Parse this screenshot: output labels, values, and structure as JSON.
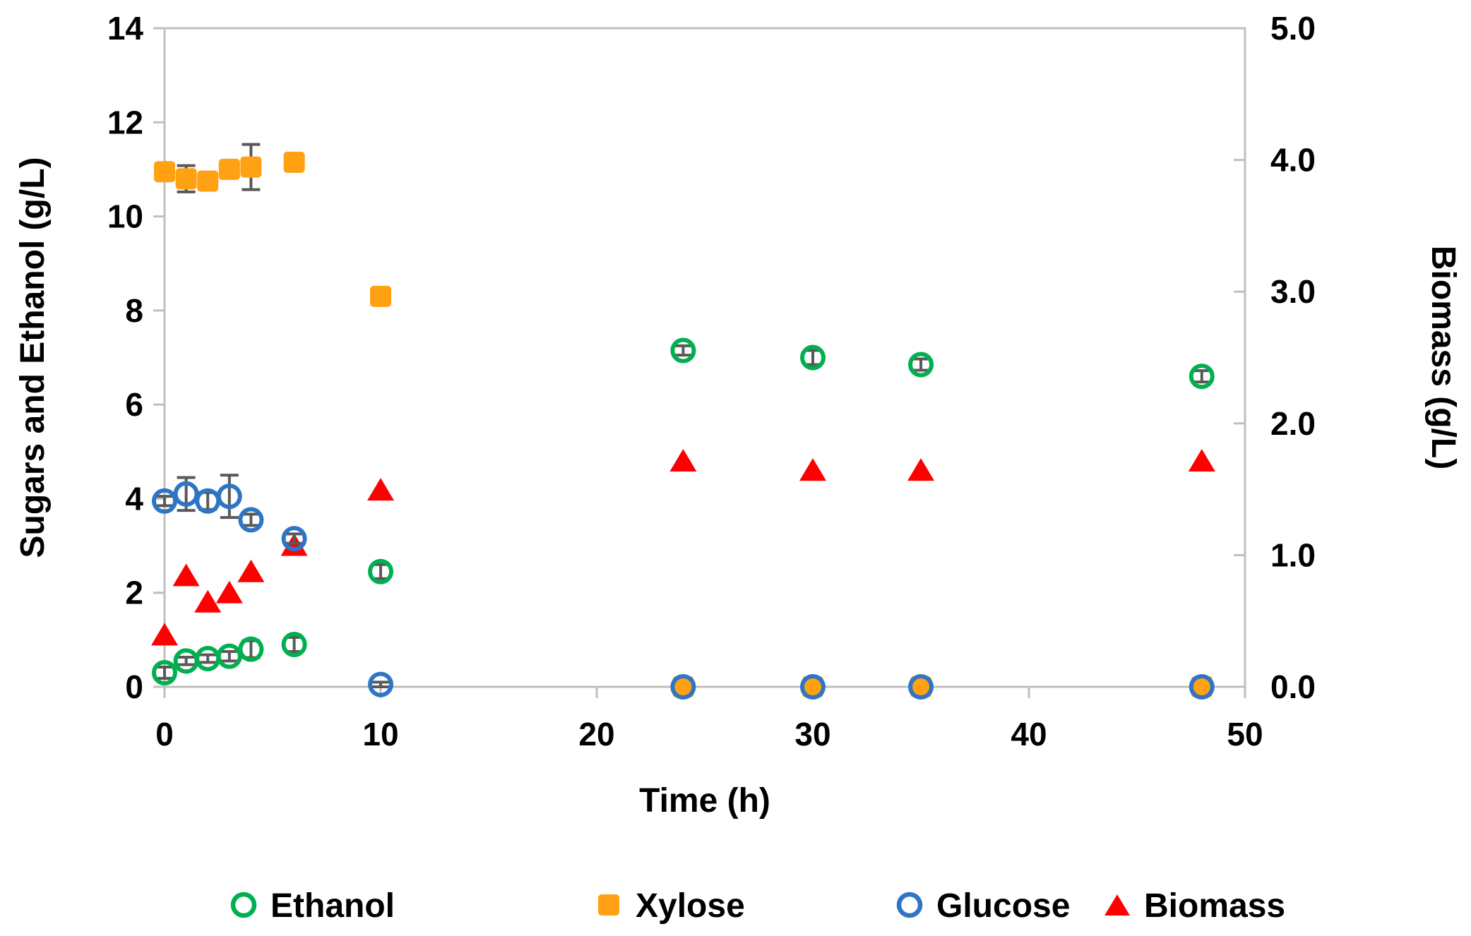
{
  "chart_data": {
    "type": "scatter",
    "title": "",
    "xlabel": "Time (h)",
    "ylabel_left": "Sugars and Ethanol (g/L)",
    "ylabel_right": "Biomass (g/L)",
    "xlim": [
      0,
      50
    ],
    "xticks": [
      "0",
      "10",
      "20",
      "30",
      "40",
      "50"
    ],
    "xtick_values": [
      0,
      10,
      20,
      30,
      40,
      50
    ],
    "ylim_left": [
      0,
      14
    ],
    "yticks_left": [
      "0",
      "2",
      "4",
      "6",
      "8",
      "10",
      "12",
      "14"
    ],
    "ytick_values_left": [
      0,
      2,
      4,
      6,
      8,
      10,
      12,
      14
    ],
    "ylim_right": [
      0.0,
      5.0
    ],
    "yticks_right": [
      "0.0",
      "1.0",
      "2.0",
      "3.0",
      "4.0",
      "5.0"
    ],
    "ytick_values_right": [
      0.0,
      1.0,
      2.0,
      3.0,
      4.0,
      5.0
    ],
    "grid": false,
    "legend_position": "bottom",
    "x": [
      0,
      1,
      2,
      3,
      4,
      6,
      10,
      24,
      30,
      35,
      48
    ],
    "series": [
      {
        "name": "Xylose",
        "marker": "square",
        "color": "#FFA113",
        "axis": "left",
        "values": [
          10.95,
          10.8,
          10.75,
          11.0,
          11.05,
          11.15,
          8.3,
          0,
          0,
          0,
          0
        ],
        "errors": [
          0.12,
          0.28,
          0.08,
          0.1,
          0.48,
          0.1,
          0.06,
          0,
          0,
          0,
          0
        ]
      },
      {
        "name": "Biomass",
        "marker": "triangle",
        "color": "#FF0000",
        "axis": "right",
        "values": [
          0.4,
          0.85,
          0.65,
          0.72,
          0.88,
          1.08,
          1.5,
          1.72,
          1.65,
          1.65,
          1.72
        ],
        "errors": [
          0,
          0,
          0,
          0,
          0,
          0,
          0,
          0,
          0,
          0,
          0
        ]
      },
      {
        "name": "Glucose",
        "marker": "open-circle",
        "color": "#2E75C6",
        "axis": "left",
        "values": [
          3.95,
          4.1,
          3.95,
          4.05,
          3.55,
          3.15,
          0.05,
          0,
          0,
          0,
          0
        ],
        "errors": [
          0.1,
          0.35,
          0.18,
          0.45,
          0.12,
          0.1,
          0.05,
          0,
          0,
          0,
          0
        ]
      },
      {
        "name": "Ethanol",
        "marker": "open-circle",
        "color": "#00B050",
        "axis": "left",
        "values": [
          0.3,
          0.55,
          0.6,
          0.65,
          0.8,
          0.9,
          2.45,
          7.15,
          7.0,
          6.85,
          6.6
        ],
        "errors": [
          0.12,
          0.08,
          0.08,
          0.1,
          0.18,
          0.15,
          0.15,
          0.1,
          0.15,
          0.12,
          0.12
        ]
      }
    ],
    "legend": [
      {
        "label": "Ethanol",
        "marker": "open-circle",
        "color": "#00B050"
      },
      {
        "label": "Xylose",
        "marker": "square",
        "color": "#FFA113"
      },
      {
        "label": "Glucose",
        "marker": "open-circle",
        "color": "#2E75C6"
      },
      {
        "label": "Biomass",
        "marker": "triangle",
        "color": "#FF0000"
      }
    ],
    "colors": {
      "axis_line": "#BFBFBF",
      "error_bar": "#595959",
      "text": "#000000",
      "background": "#FFFFFF"
    }
  }
}
